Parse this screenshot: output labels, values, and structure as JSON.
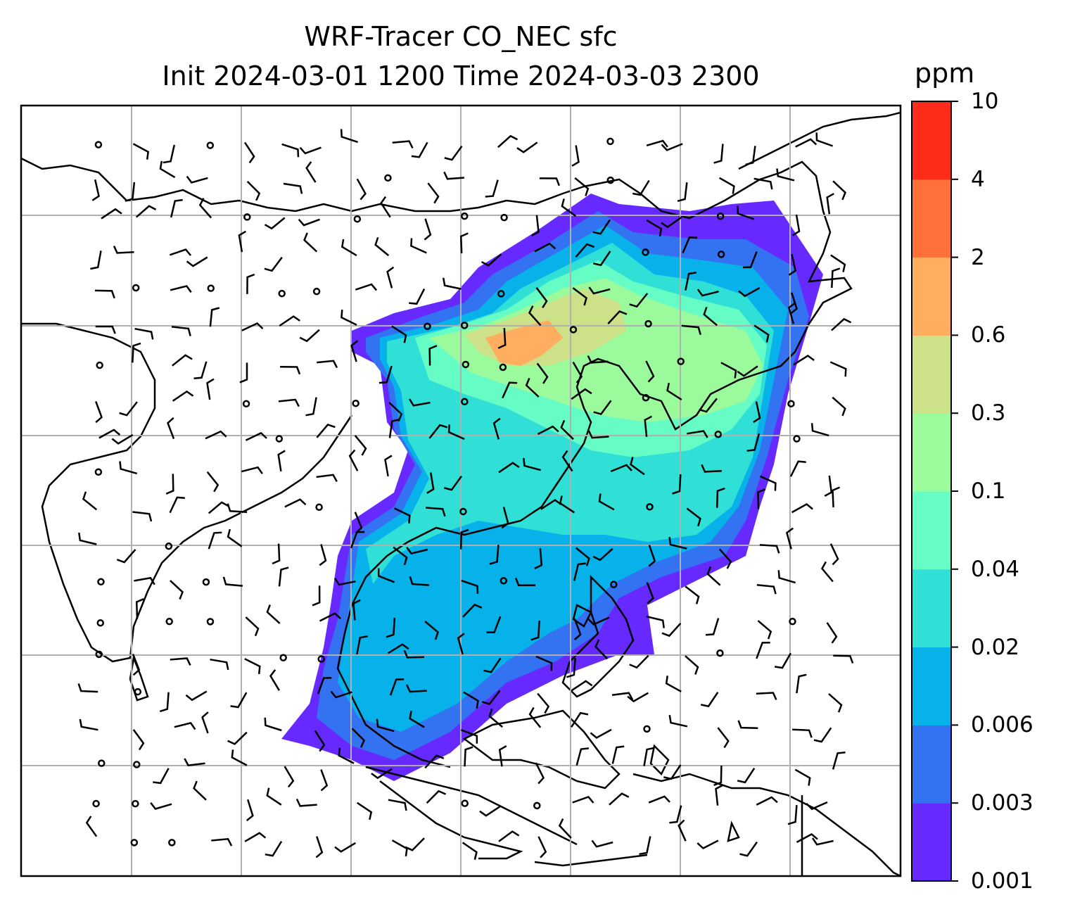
{
  "title_line1": "WRF-Tracer CO_NEC sfc",
  "title_line2": "Init 2024-03-01 1200 Time 2024-03-03 2300",
  "colorbar": {
    "unit": "ppm",
    "levels": [
      "0.001",
      "0.003",
      "0.006",
      "0.02",
      "0.04",
      "0.1",
      "0.3",
      "0.6",
      "2",
      "4",
      "10"
    ],
    "colors": [
      "#6629ff",
      "#3373f2",
      "#07b1ea",
      "#30e0d6",
      "#66fcc5",
      "#9afa9c",
      "#cde188",
      "#ffad5e",
      "#ff703a",
      "#ff2b1a"
    ]
  },
  "map": {
    "projection": "lat-lon grid with coastlines",
    "gridlines": true,
    "overlay": "surface wind barbs",
    "field": "CO_NEC tracer concentration (ppm)"
  }
}
